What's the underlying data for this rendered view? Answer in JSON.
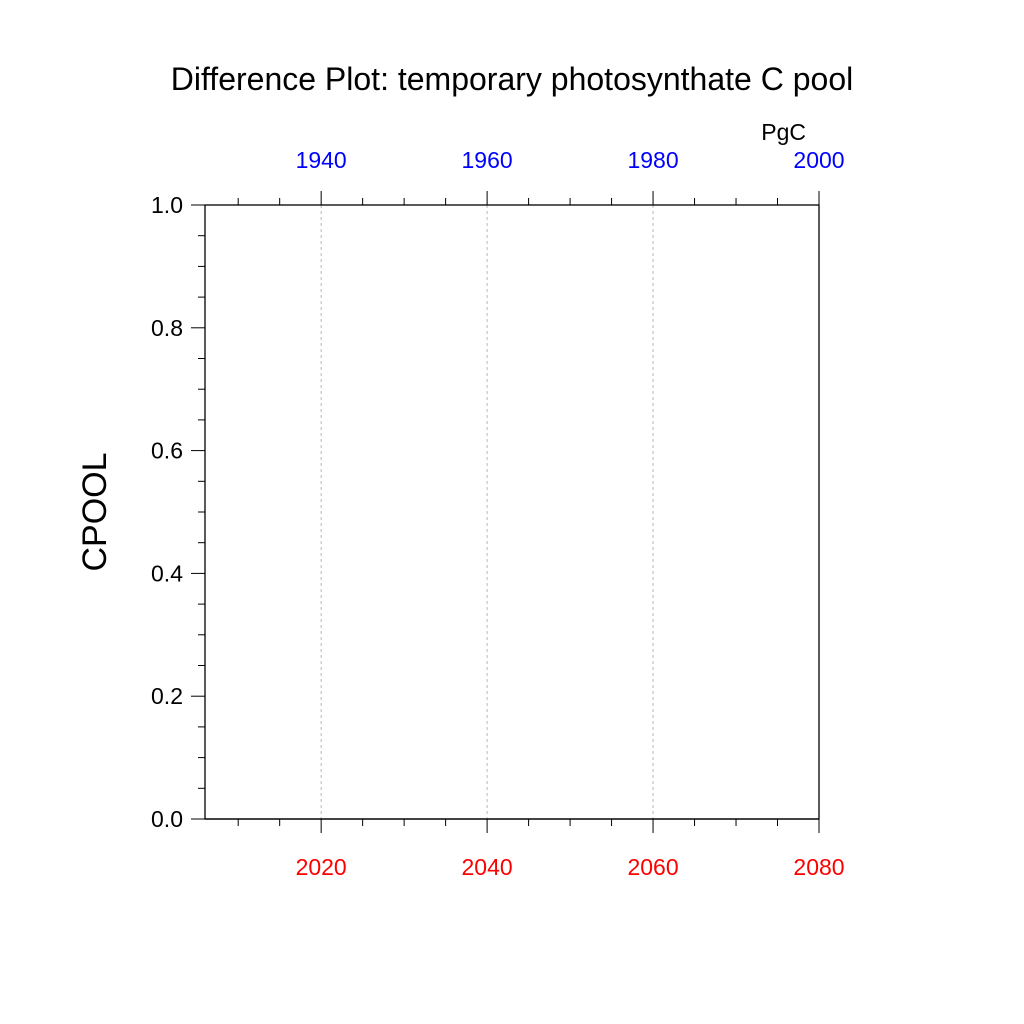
{
  "chart_data": {
    "type": "line",
    "title": "Difference Plot: temporary photosynthate C pool",
    "units": "PgC",
    "ylabel": "CPOOL",
    "ylim": [
      0,
      1
    ],
    "y_ticks": [
      0.0,
      0.2,
      0.4,
      0.6,
      0.8,
      1.0
    ],
    "y_tick_labels": [
      "0.0",
      "0.2",
      "0.4",
      "0.6",
      "0.8",
      "1.0"
    ],
    "x_bottom": {
      "range": [
        2006,
        2080
      ],
      "ticks": [
        2020,
        2040,
        2060,
        2080
      ],
      "tick_labels": [
        "2020",
        "2040",
        "2060",
        "2080"
      ],
      "color": "#ff0000"
    },
    "x_top": {
      "range": [
        1926,
        2000
      ],
      "ticks": [
        1940,
        1960,
        1980,
        2000
      ],
      "tick_labels": [
        "1940",
        "1960",
        "1980",
        "2000"
      ],
      "color": "#0000ff"
    },
    "gridlines_x": [
      2020,
      2040,
      2060
    ],
    "series": [
      {
        "x": [
          2006,
          2080
        ],
        "y": [
          0,
          0
        ],
        "color": "#000000"
      }
    ]
  }
}
